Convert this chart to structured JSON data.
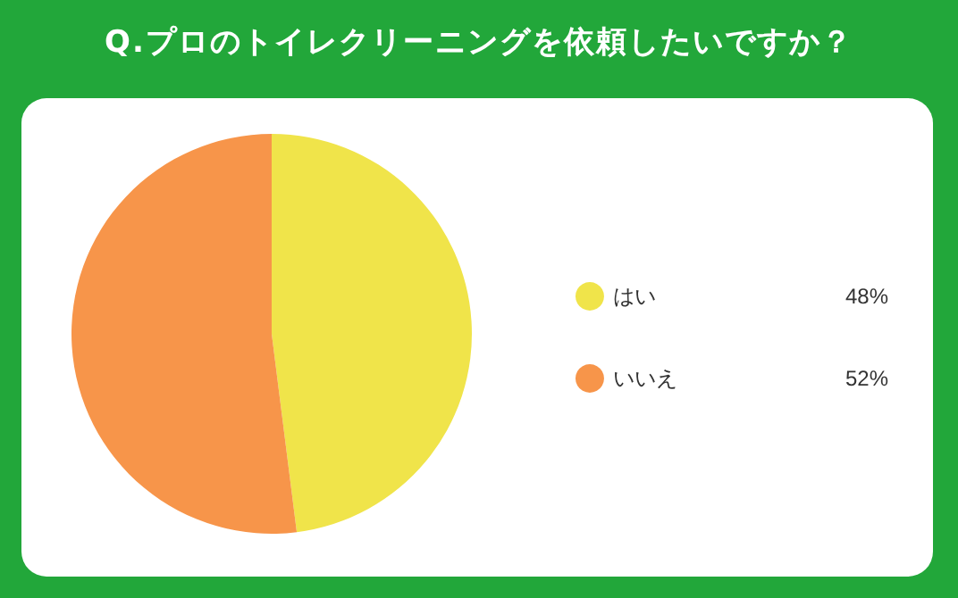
{
  "chart_data": {
    "type": "pie",
    "title": "Q.プロのトイレクリーニングを依頼したいですか？",
    "categories": [
      "はい",
      "いいえ"
    ],
    "values": [
      48,
      52
    ],
    "value_labels": [
      "48%",
      "52%"
    ],
    "colors": [
      "#f0e44a",
      "#f7954a"
    ],
    "legend": "right"
  }
}
